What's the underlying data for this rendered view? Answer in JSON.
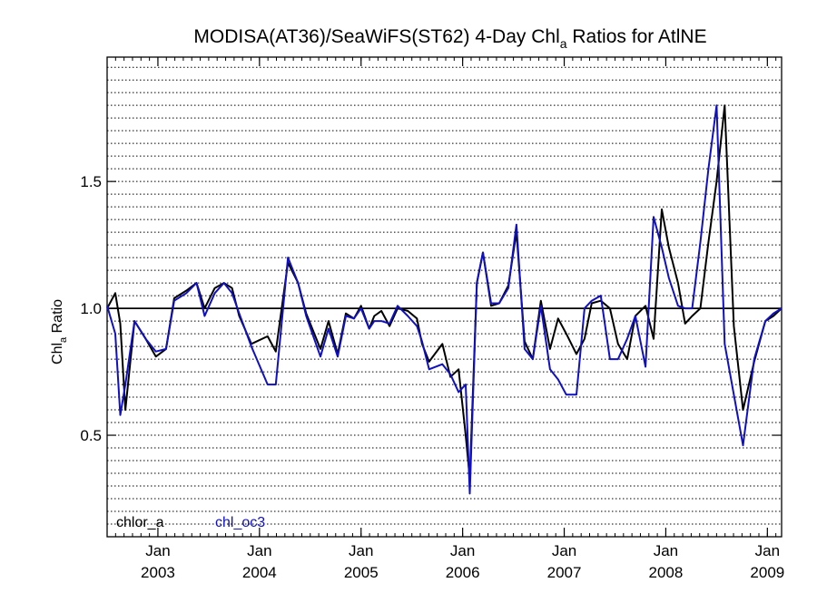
{
  "chart_data": {
    "type": "line",
    "title_main": "MODISA(AT36)/SeaWiFS(ST62) 4-Day Chl",
    "title_sub": "a",
    "title_rest": " Ratios for AtlNE",
    "ylabel_main": "Chl",
    "ylabel_sub": "a",
    "ylabel_rest": " Ratio",
    "xlim": [
      2002.5,
      2009.14
    ],
    "ylim": [
      0.1,
      1.99
    ],
    "y_ticks": [
      {
        "value": 0.5,
        "label": "0.5"
      },
      {
        "value": 1.0,
        "label": "1.0"
      },
      {
        "value": 1.5,
        "label": "1.5"
      }
    ],
    "x_ticks": [
      {
        "value": 2003.0,
        "month": "Jan",
        "year": "2003"
      },
      {
        "value": 2004.0,
        "month": "Jan",
        "year": "2004"
      },
      {
        "value": 2005.0,
        "month": "Jan",
        "year": "2005"
      },
      {
        "value": 2006.0,
        "month": "Jan",
        "year": "2006"
      },
      {
        "value": 2007.0,
        "month": "Jan",
        "year": "2007"
      },
      {
        "value": 2008.0,
        "month": "Jan",
        "year": "2008"
      },
      {
        "value": 2009.0,
        "month": "Jan",
        "year": "2009"
      }
    ],
    "reference_line": 1.0,
    "grid": "horizontal dotted",
    "legend_placement": "bottom-left",
    "series": [
      {
        "name": "chlor_a",
        "color": "#000000",
        "x": [
          2002.5,
          2002.58,
          2002.63,
          2002.68,
          2002.77,
          2002.88,
          2002.98,
          2003.08,
          2003.16,
          2003.28,
          2003.38,
          2003.46,
          2003.56,
          2003.65,
          2003.73,
          2003.8,
          2003.92,
          2004.08,
          2004.16,
          2004.28,
          2004.38,
          2004.46,
          2004.6,
          2004.68,
          2004.77,
          2004.85,
          2004.93,
          2005.0,
          2005.08,
          2005.13,
          2005.2,
          2005.28,
          2005.36,
          2005.46,
          2005.55,
          2005.6,
          2005.67,
          2005.8,
          2005.88,
          2005.96,
          2006.03,
          2006.07,
          2006.14,
          2006.2,
          2006.28,
          2006.36,
          2006.45,
          2006.53,
          2006.61,
          2006.69,
          2006.77,
          2006.86,
          2006.94,
          2007.02,
          2007.12,
          2007.2,
          2007.27,
          2007.36,
          2007.45,
          2007.53,
          2007.62,
          2007.7,
          2007.8,
          2007.88,
          2007.96,
          2008.03,
          2008.12,
          2008.19,
          2008.26,
          2008.34,
          2008.42,
          2008.5,
          2008.58,
          2008.67,
          2008.76,
          2008.87,
          2008.98,
          2009.06,
          2009.14
        ],
        "y": [
          1.0,
          1.06,
          0.94,
          0.6,
          0.95,
          0.88,
          0.81,
          0.84,
          1.04,
          1.07,
          1.1,
          1.0,
          1.08,
          1.1,
          1.08,
          0.97,
          0.86,
          0.89,
          0.83,
          1.18,
          1.1,
          0.98,
          0.84,
          0.95,
          0.82,
          0.98,
          0.96,
          1.01,
          0.92,
          0.97,
          0.99,
          0.93,
          1.0,
          0.99,
          0.96,
          0.86,
          0.79,
          0.86,
          0.73,
          0.76,
          0.5,
          0.33,
          1.1,
          1.22,
          1.01,
          1.02,
          1.09,
          1.3,
          0.87,
          0.8,
          1.03,
          0.84,
          0.96,
          0.9,
          0.82,
          0.88,
          1.02,
          1.03,
          1.0,
          0.86,
          0.8,
          0.97,
          1.01,
          0.88,
          1.39,
          1.24,
          1.1,
          0.94,
          0.97,
          1.0,
          1.26,
          1.5,
          1.8,
          0.93,
          0.6,
          0.79,
          0.95,
          0.97,
          1.0
        ]
      },
      {
        "name": "chl_oc3",
        "color": "#1010c0",
        "x": [
          2002.5,
          2002.58,
          2002.63,
          2002.68,
          2002.77,
          2002.88,
          2002.98,
          2003.08,
          2003.16,
          2003.28,
          2003.38,
          2003.46,
          2003.56,
          2003.65,
          2003.73,
          2003.8,
          2003.92,
          2004.08,
          2004.16,
          2004.28,
          2004.38,
          2004.46,
          2004.6,
          2004.68,
          2004.77,
          2004.85,
          2004.93,
          2005.0,
          2005.08,
          2005.13,
          2005.2,
          2005.28,
          2005.36,
          2005.46,
          2005.55,
          2005.6,
          2005.67,
          2005.8,
          2005.88,
          2005.96,
          2006.03,
          2006.07,
          2006.14,
          2006.2,
          2006.28,
          2006.36,
          2006.45,
          2006.53,
          2006.61,
          2006.69,
          2006.77,
          2006.86,
          2006.94,
          2007.02,
          2007.12,
          2007.2,
          2007.27,
          2007.36,
          2007.45,
          2007.53,
          2007.62,
          2007.7,
          2007.8,
          2007.88,
          2007.96,
          2008.03,
          2008.12,
          2008.19,
          2008.26,
          2008.34,
          2008.42,
          2008.5,
          2008.58,
          2008.67,
          2008.76,
          2008.87,
          2008.98,
          2009.06,
          2009.14
        ],
        "y": [
          1.01,
          0.9,
          0.58,
          0.7,
          0.95,
          0.88,
          0.83,
          0.84,
          1.03,
          1.06,
          1.1,
          0.97,
          1.06,
          1.1,
          1.06,
          0.98,
          0.85,
          0.7,
          0.7,
          1.2,
          1.1,
          0.97,
          0.81,
          0.92,
          0.81,
          0.97,
          0.96,
          1.0,
          0.92,
          0.95,
          0.95,
          0.94,
          1.01,
          0.97,
          0.93,
          0.87,
          0.76,
          0.78,
          0.74,
          0.67,
          0.7,
          0.27,
          1.1,
          1.22,
          1.02,
          1.02,
          1.08,
          1.33,
          0.84,
          0.8,
          1.01,
          0.76,
          0.72,
          0.66,
          0.66,
          1.0,
          1.03,
          1.05,
          0.8,
          0.8,
          0.88,
          0.97,
          0.77,
          1.36,
          1.24,
          1.12,
          1.01,
          1.0,
          1.0,
          1.26,
          1.55,
          1.8,
          0.86,
          0.66,
          0.46,
          0.8,
          0.95,
          0.98,
          1.0
        ]
      }
    ]
  }
}
